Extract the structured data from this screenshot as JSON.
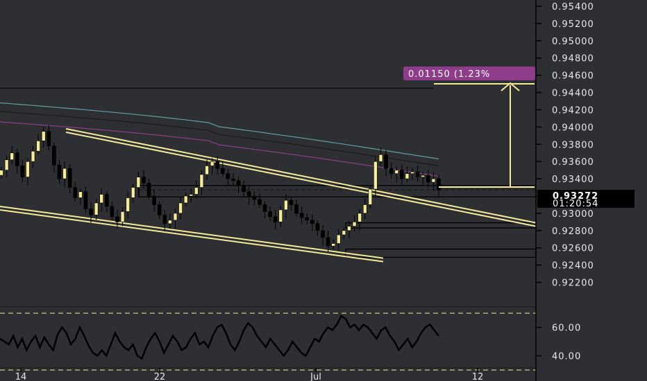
{
  "theme": {
    "background": "#2e2f33",
    "axis_panel": "#ffffff",
    "up_candle": "#f5ec9a",
    "down_candle": "#000000",
    "trendline": "#f5ec9a",
    "ma_teal": "#5f9ea0",
    "ma_purple": "#8e3d8a",
    "ma_black": "#1a1a1a",
    "measure": "#8e3d8a",
    "osc_line": "#000000"
  },
  "measure": {
    "label": "0.01150 (1.23%"
  },
  "last_price": {
    "price_label": "0.93272",
    "countdown_label": "01:20:54"
  },
  "chart_data": [
    {
      "type": "candlestick",
      "title": "",
      "y_axis_ticks": [
        "0.95400",
        "0.95200",
        "0.95000",
        "0.94800",
        "0.94600",
        "0.94400",
        "0.94200",
        "0.94000",
        "0.93800",
        "0.93600",
        "0.93400",
        "0.93200",
        "0.93000",
        "0.92800",
        "0.92600",
        "0.92400",
        "0.92200"
      ],
      "y_range": [
        0.921,
        0.9544
      ],
      "x_axis_ticks": [
        "14",
        "22",
        "Jul",
        "12"
      ],
      "grid": false,
      "close_series": [
        0.935,
        0.9362,
        0.937,
        0.9355,
        0.9342,
        0.936,
        0.9372,
        0.9384,
        0.9395,
        0.9378,
        0.9356,
        0.934,
        0.9352,
        0.933,
        0.9318,
        0.9325,
        0.9305,
        0.9298,
        0.9312,
        0.9322,
        0.9308,
        0.9296,
        0.929,
        0.9302,
        0.9318,
        0.933,
        0.9342,
        0.9335,
        0.932,
        0.931,
        0.9298,
        0.9288,
        0.9292,
        0.93,
        0.9312,
        0.932,
        0.9322,
        0.933,
        0.9345,
        0.9355,
        0.936,
        0.9352,
        0.9346,
        0.934,
        0.9338,
        0.9332,
        0.9325,
        0.932,
        0.9316,
        0.931,
        0.9302,
        0.9296,
        0.929,
        0.9304,
        0.9315,
        0.931,
        0.93,
        0.9295,
        0.9292,
        0.9288,
        0.928,
        0.9272,
        0.9262,
        0.9265,
        0.9275,
        0.928,
        0.9285,
        0.929,
        0.93,
        0.931,
        0.9328,
        0.936,
        0.9368,
        0.9352,
        0.9346,
        0.935,
        0.934,
        0.9346,
        0.9348,
        0.9342,
        0.9344,
        0.9336,
        0.934,
        0.9327
      ],
      "moving_averages": [
        {
          "color": "teal",
          "start": 0.9428,
          "end": 0.9363
        },
        {
          "color": "black",
          "start": 0.9418,
          "end": 0.9355
        },
        {
          "color": "purple",
          "start": 0.9406,
          "end": 0.9343
        }
      ],
      "trendlines": [
        {
          "from_price": 0.9398,
          "to_price": 0.9289,
          "label": ""
        },
        {
          "from_price": 0.9308,
          "to_price": 0.9248,
          "label": ""
        }
      ],
      "horizontal_levels": [
        0.9445,
        0.93322,
        0.9319,
        0.9289,
        0.9282,
        0.92585,
        0.9249
      ],
      "last_price": 0.93272
    },
    {
      "type": "line",
      "title": "",
      "y_axis_ticks": [
        "60.00",
        "40.00"
      ],
      "y_range": [
        32,
        72
      ],
      "upper_band": 70,
      "lower_band": 30,
      "values": [
        52,
        50,
        48,
        54,
        46,
        52,
        44,
        50,
        54,
        46,
        53,
        48,
        44,
        55,
        60,
        56,
        48,
        52,
        60,
        54,
        47,
        42,
        40,
        44,
        40,
        48,
        56,
        50,
        46,
        44,
        48,
        40,
        38,
        46,
        52,
        56,
        50,
        42,
        48,
        54,
        50,
        44,
        46,
        52,
        56,
        48,
        50,
        46,
        54,
        60,
        62,
        56,
        48,
        44,
        50,
        58,
        63,
        60,
        54,
        50,
        46,
        52,
        48,
        44,
        40,
        44,
        50,
        46,
        42,
        40,
        46,
        52,
        50,
        56,
        60,
        58,
        62,
        68,
        66,
        60,
        62,
        58,
        62,
        60,
        56,
        52,
        58,
        60,
        54,
        50,
        44,
        48,
        52,
        46,
        50,
        56,
        60,
        62,
        58,
        54
      ]
    }
  ]
}
